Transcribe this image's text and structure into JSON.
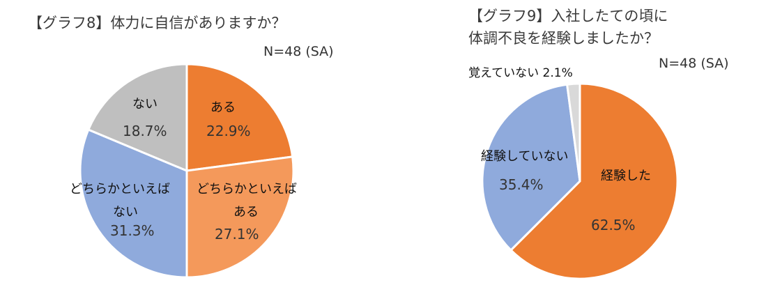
{
  "chart_data": [
    {
      "type": "pie",
      "title": "【グラフ8】体力に自信がありますか？",
      "note": "N=48 (SA)",
      "colors": {
        "border": "#ffffff"
      },
      "slices": [
        {
          "label": "ある",
          "value": 22.9,
          "value_label": "22.9%",
          "color": "#ed7d31"
        },
        {
          "label": "どちらかといえばある",
          "label_lines": [
            "どちらかといえば",
            "ある"
          ],
          "value": 27.1,
          "value_label": "27.1%",
          "color": "#f4995b"
        },
        {
          "label": "どちらかといえばない",
          "label_lines": [
            "どちらかといえば",
            "ない"
          ],
          "value": 31.3,
          "value_label": "31.3%",
          "color": "#8faadc"
        },
        {
          "label": "ない",
          "value": 18.7,
          "value_label": "18.7%",
          "color": "#bfbfbf"
        }
      ]
    },
    {
      "type": "pie",
      "title": "【グラフ9】入社したての頃に体調不良を経験しましたか？",
      "title_lines": [
        "【グラフ9】入社したての頃に",
        "体調不良を経験しましたか？"
      ],
      "note": "N=48 (SA)",
      "slices": [
        {
          "label": "経験した",
          "value": 62.5,
          "value_label": "62.5%",
          "color": "#ed7d31"
        },
        {
          "label": "経験していない",
          "value": 35.4,
          "value_label": "35.4%",
          "color": "#8faadc"
        },
        {
          "label": "覚えていない",
          "value": 2.1,
          "value_label": "2.1%",
          "color": "#d9d9d9",
          "combined_label": "覚えていない 2.1%"
        }
      ]
    }
  ]
}
